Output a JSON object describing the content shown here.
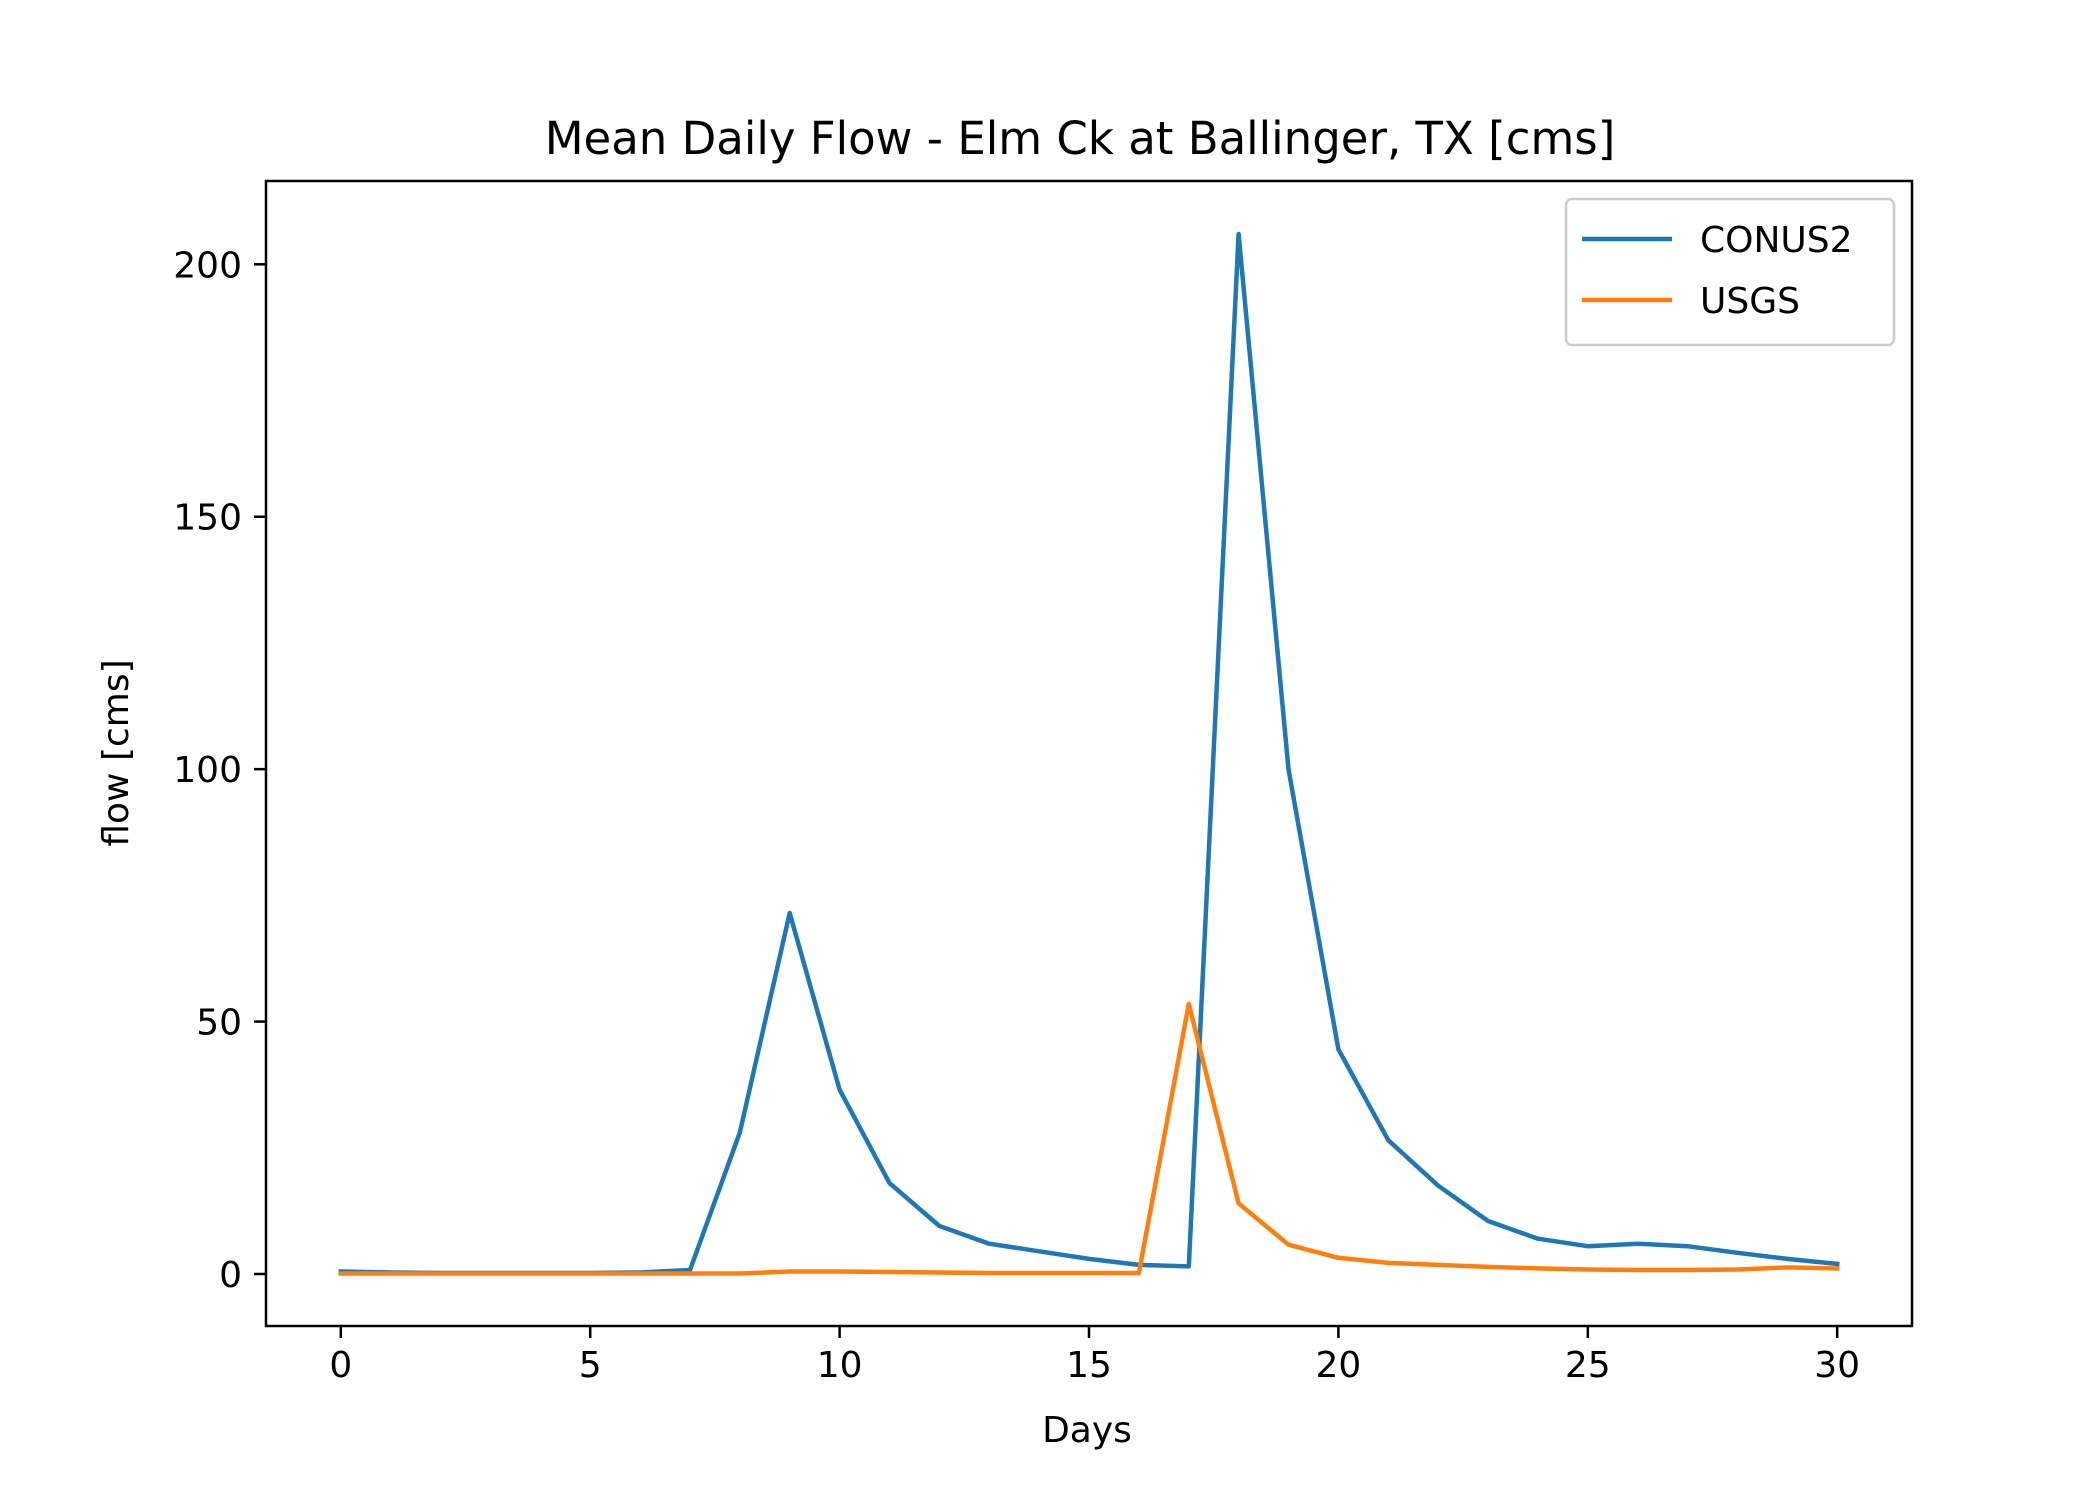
{
  "chart_data": {
    "type": "line",
    "title": "Mean Daily Flow - Elm Ck at Ballinger, TX [cms]",
    "xlabel": "Days",
    "ylabel": "flow [cms]",
    "xlim": [
      -1.5,
      31.5
    ],
    "ylim": [
      -10.3,
      216.5
    ],
    "xticks": [
      0,
      5,
      10,
      15,
      20,
      25,
      30
    ],
    "yticks": [
      0,
      50,
      100,
      150,
      200
    ],
    "legend_position": "upper right",
    "grid": false,
    "x": [
      0,
      1,
      2,
      3,
      4,
      5,
      6,
      7,
      8,
      9,
      10,
      11,
      12,
      13,
      14,
      15,
      16,
      17,
      18,
      19,
      20,
      21,
      22,
      23,
      24,
      25,
      26,
      27,
      28,
      29,
      30
    ],
    "series": [
      {
        "name": "CONUS2",
        "color": "#1f77b4",
        "values": [
          0.5,
          0.3,
          0.2,
          0.2,
          0.2,
          0.2,
          0.3,
          0.8,
          28,
          71.5,
          36.5,
          18,
          9.5,
          6,
          4.5,
          3,
          1.8,
          1.5,
          206,
          100,
          44.5,
          26.5,
          17.5,
          10.5,
          7,
          5.5,
          6,
          5.5,
          4.2,
          3,
          2
        ]
      },
      {
        "name": "USGS",
        "color": "#ff7f0e",
        "values": [
          0.1,
          0.1,
          0.1,
          0.1,
          0.1,
          0.1,
          0.1,
          0.1,
          0.1,
          0.5,
          0.5,
          0.4,
          0.3,
          0.2,
          0.2,
          0.2,
          0.2,
          53.5,
          14,
          5.8,
          3.2,
          2.2,
          1.8,
          1.4,
          1.1,
          0.9,
          0.8,
          0.8,
          0.9,
          1.3,
          1.1
        ]
      }
    ]
  }
}
